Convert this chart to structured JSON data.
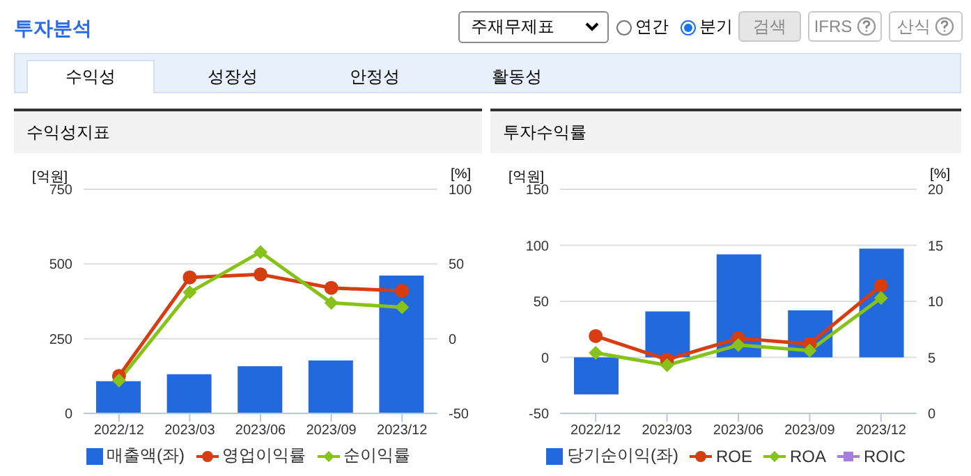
{
  "chart_data": [
    {
      "type": "bar",
      "title": "수익성지표",
      "ylabel": "[억원]",
      "y2label": "[%]",
      "annotations": [
        "투자분석",
        "주재무제표",
        "연간",
        "분기",
        "검색",
        "IFRS",
        "산식",
        "수익성",
        "성장성",
        "안정성",
        "활동성"
      ],
      "categories": [
        "2022/12",
        "2023/03",
        "2023/06",
        "2023/09",
        "2023/12"
      ],
      "series": [
        {
          "name": "매출액(좌)",
          "color": "#2169dc",
          "values": [
            108,
            131,
            158,
            177,
            461
          ]
        },
        {
          "name": "영업이익률",
          "type": "line",
          "axis": "y2",
          "marker": "circle",
          "color": "#d63d10",
          "values": [
            -25,
            41,
            43,
            34,
            32
          ]
        },
        {
          "name": "순이익률",
          "type": "line",
          "axis": "y2",
          "marker": "diamond",
          "color": "#86c21a",
          "values": [
            -28,
            31,
            58,
            24,
            21
          ]
        }
      ],
      "ylim": [
        0,
        750
      ],
      "yticks": [
        0,
        250,
        500,
        750
      ],
      "y2lim": [
        -50,
        100
      ],
      "y2ticks": [
        -50,
        0,
        50,
        100
      ],
      "grid": "y",
      "legend": "bottom",
      "line_style": "solid"
    },
    {
      "type": "bar",
      "title": "투자수익률",
      "ylabel": "[억원]",
      "y2label": "[%]",
      "categories": [
        "2022/12",
        "2023/03",
        "2023/06",
        "2023/09",
        "2023/12"
      ],
      "series": [
        {
          "name": "당기순이익(좌)",
          "color": "#2169dc",
          "values": [
            -33,
            41,
            92,
            42,
            97
          ]
        },
        {
          "name": "ROE",
          "type": "line",
          "axis": "y2",
          "marker": "circle",
          "color": "#d63d10",
          "values": [
            6.9,
            4.8,
            6.7,
            6.2,
            11.4
          ]
        },
        {
          "name": "ROA",
          "type": "line",
          "axis": "y2",
          "marker": "diamond",
          "color": "#86c21a",
          "values": [
            5.4,
            4.3,
            6.1,
            5.6,
            10.3
          ]
        },
        {
          "name": "ROIC",
          "type": "line",
          "axis": "y2",
          "marker": "square",
          "color": "#a57ee0",
          "values": [
            null,
            null,
            null,
            null,
            null
          ]
        }
      ],
      "ylim": [
        -50,
        150
      ],
      "yticks": [
        -50,
        0,
        50,
        100,
        150
      ],
      "y2lim": [
        0,
        20
      ],
      "y2ticks": [
        0,
        5,
        10,
        15,
        20
      ],
      "grid": "y",
      "legend": "bottom",
      "line_style": "solid"
    }
  ]
}
